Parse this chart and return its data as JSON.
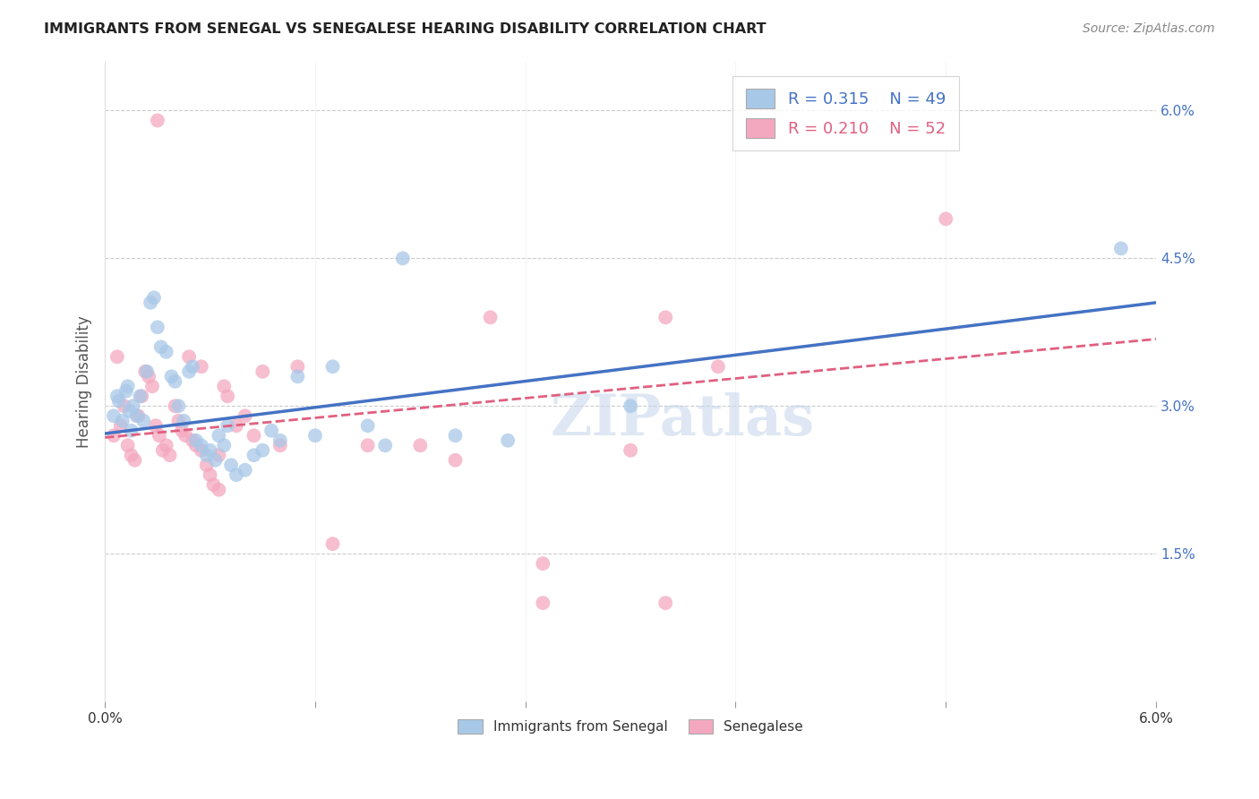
{
  "title": "IMMIGRANTS FROM SENEGAL VS SENEGALESE HEARING DISABILITY CORRELATION CHART",
  "source": "Source: ZipAtlas.com",
  "ylabel": "Hearing Disability",
  "xlim": [
    0.0,
    6.0
  ],
  "ylim": [
    0.0,
    6.5
  ],
  "blue_R": "R = 0.315",
  "blue_N": "N = 49",
  "pink_R": "R = 0.210",
  "pink_N": "N = 52",
  "blue_color": "#a8c8e8",
  "pink_color": "#f4a8c0",
  "blue_line_color": "#4472c4",
  "pink_line_color": "#e06080",
  "watermark": "ZIPatlas",
  "blue_points": [
    [
      0.05,
      2.9
    ],
    [
      0.07,
      3.1
    ],
    [
      0.08,
      3.05
    ],
    [
      0.1,
      2.85
    ],
    [
      0.12,
      3.15
    ],
    [
      0.13,
      3.2
    ],
    [
      0.14,
      2.95
    ],
    [
      0.15,
      2.75
    ],
    [
      0.16,
      3.0
    ],
    [
      0.18,
      2.9
    ],
    [
      0.2,
      3.1
    ],
    [
      0.22,
      2.85
    ],
    [
      0.24,
      3.35
    ],
    [
      0.26,
      4.05
    ],
    [
      0.28,
      4.1
    ],
    [
      0.3,
      3.8
    ],
    [
      0.32,
      3.6
    ],
    [
      0.35,
      3.55
    ],
    [
      0.38,
      3.3
    ],
    [
      0.4,
      3.25
    ],
    [
      0.42,
      3.0
    ],
    [
      0.45,
      2.85
    ],
    [
      0.48,
      3.35
    ],
    [
      0.5,
      3.4
    ],
    [
      0.52,
      2.65
    ],
    [
      0.55,
      2.6
    ],
    [
      0.58,
      2.5
    ],
    [
      0.6,
      2.55
    ],
    [
      0.63,
      2.45
    ],
    [
      0.65,
      2.7
    ],
    [
      0.68,
      2.6
    ],
    [
      0.7,
      2.8
    ],
    [
      0.72,
      2.4
    ],
    [
      0.75,
      2.3
    ],
    [
      0.8,
      2.35
    ],
    [
      0.85,
      2.5
    ],
    [
      0.9,
      2.55
    ],
    [
      0.95,
      2.75
    ],
    [
      1.0,
      2.65
    ],
    [
      1.1,
      3.3
    ],
    [
      1.2,
      2.7
    ],
    [
      1.3,
      3.4
    ],
    [
      1.5,
      2.8
    ],
    [
      1.6,
      2.6
    ],
    [
      1.7,
      4.5
    ],
    [
      2.0,
      2.7
    ],
    [
      2.3,
      2.65
    ],
    [
      3.0,
      3.0
    ],
    [
      5.8,
      4.6
    ]
  ],
  "pink_points": [
    [
      0.05,
      2.7
    ],
    [
      0.07,
      3.5
    ],
    [
      0.09,
      2.8
    ],
    [
      0.11,
      3.0
    ],
    [
      0.13,
      2.6
    ],
    [
      0.15,
      2.5
    ],
    [
      0.17,
      2.45
    ],
    [
      0.19,
      2.9
    ],
    [
      0.21,
      3.1
    ],
    [
      0.23,
      3.35
    ],
    [
      0.25,
      3.3
    ],
    [
      0.27,
      3.2
    ],
    [
      0.29,
      2.8
    ],
    [
      0.31,
      2.7
    ],
    [
      0.33,
      2.55
    ],
    [
      0.35,
      2.6
    ],
    [
      0.37,
      2.5
    ],
    [
      0.4,
      3.0
    ],
    [
      0.42,
      2.85
    ],
    [
      0.44,
      2.75
    ],
    [
      0.46,
      2.7
    ],
    [
      0.48,
      3.5
    ],
    [
      0.5,
      2.65
    ],
    [
      0.52,
      2.6
    ],
    [
      0.55,
      2.55
    ],
    [
      0.58,
      2.4
    ],
    [
      0.6,
      2.3
    ],
    [
      0.62,
      2.2
    ],
    [
      0.65,
      2.15
    ],
    [
      0.68,
      3.2
    ],
    [
      0.7,
      3.1
    ],
    [
      0.75,
      2.8
    ],
    [
      0.8,
      2.9
    ],
    [
      0.85,
      2.7
    ],
    [
      0.9,
      3.35
    ],
    [
      1.0,
      2.6
    ],
    [
      1.1,
      3.4
    ],
    [
      1.3,
      1.6
    ],
    [
      1.5,
      2.6
    ],
    [
      1.8,
      2.6
    ],
    [
      2.0,
      2.45
    ],
    [
      2.2,
      3.9
    ],
    [
      2.5,
      1.4
    ],
    [
      3.0,
      2.55
    ],
    [
      3.2,
      3.9
    ],
    [
      3.5,
      3.4
    ],
    [
      4.8,
      4.9
    ],
    [
      0.3,
      5.9
    ],
    [
      0.55,
      3.4
    ],
    [
      3.2,
      1.0
    ],
    [
      2.5,
      1.0
    ],
    [
      0.65,
      2.5
    ]
  ],
  "blue_trendline_x": [
    0.0,
    6.0
  ],
  "blue_trendline_y": [
    2.72,
    4.05
  ],
  "pink_trendline_x": [
    0.0,
    6.0
  ],
  "pink_trendline_y": [
    2.68,
    3.68
  ]
}
